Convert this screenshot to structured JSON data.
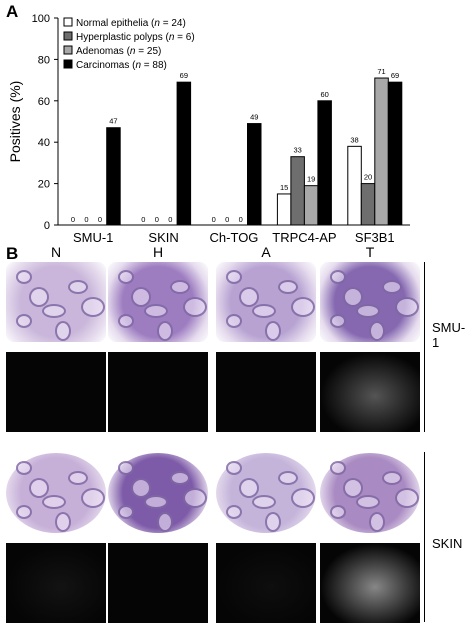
{
  "panel_a_label": "A",
  "panel_b_label": "B",
  "chart_data": {
    "type": "bar",
    "categories": [
      "SMU-1",
      "SKIN",
      "Ch-TOG",
      "TRPC4-AP",
      "SF3B1"
    ],
    "ylabel": "Positives (%)",
    "xlabel": "",
    "ylim": [
      0,
      100
    ],
    "yticks": [
      0,
      20,
      40,
      60,
      80,
      100
    ],
    "grid": false,
    "legend_position": "top-left",
    "series": [
      {
        "name": "Normal epithelia (n = 24)",
        "color": "#ffffff",
        "values": [
          0,
          0,
          0,
          15,
          38
        ]
      },
      {
        "name": "Hyperplastic polyps (n = 6)",
        "color": "#6e6e6e",
        "values": [
          0,
          0,
          0,
          33,
          20
        ]
      },
      {
        "name": "Adenomas (n = 25)",
        "color": "#a8a8a8",
        "values": [
          0,
          0,
          0,
          19,
          71
        ]
      },
      {
        "name": "Carcinomas (n = 88)",
        "color": "#000000",
        "values": [
          47,
          69,
          49,
          60,
          69
        ]
      }
    ]
  },
  "panel_b": {
    "columns": [
      "N",
      "H",
      "A",
      "T"
    ],
    "rows": [
      {
        "label": "SMU-1"
      },
      {
        "label": "SKIN"
      }
    ]
  }
}
